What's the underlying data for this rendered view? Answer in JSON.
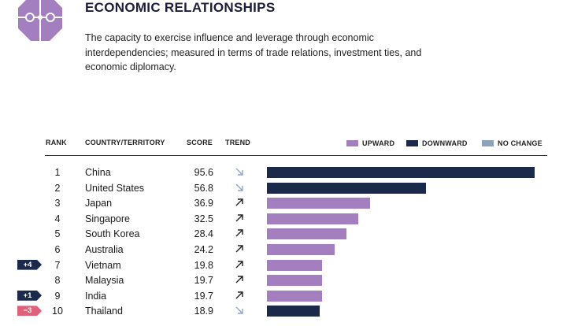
{
  "header": {
    "title": "ECONOMIC RELATIONSHIPS",
    "description": "The capacity to exercise influence and leverage through economic interdependencies; measured in terms of trade relations, investment ties, and economic diplomacy."
  },
  "table": {
    "columns": {
      "rank": "RANK",
      "country": "COUNTRY/TERRITORY",
      "score": "SCORE",
      "trend": "TREND"
    },
    "legend": [
      {
        "label": "UPWARD",
        "color": "#a47fc0"
      },
      {
        "label": "DOWNWARD",
        "color": "#1b2a4a"
      },
      {
        "label": "NO CHANGE",
        "color": "#8aa3b8"
      }
    ]
  },
  "colors": {
    "upward": "#a47fc0",
    "downward": "#1b2a4a",
    "no_change": "#8aa3b8",
    "badge_positive": "#1b2a4a",
    "badge_negative": "#e0627a",
    "trend_down_arrow": "#8fa6c4",
    "trend_up_arrow": "#222222",
    "logo": "#a47fc0"
  },
  "chart_data": {
    "type": "bar",
    "title": "ECONOMIC RELATIONSHIPS",
    "xlim": [
      0,
      100
    ],
    "categories": [
      "China",
      "United States",
      "Japan",
      "Singapore",
      "South Korea",
      "Australia",
      "Vietnam",
      "Malaysia",
      "India",
      "Thailand"
    ],
    "rows": [
      {
        "rank": "1",
        "country": "China",
        "score": "95.6",
        "value": 95.6,
        "trend": "down",
        "change": ""
      },
      {
        "rank": "2",
        "country": "United States",
        "score": "56.8",
        "value": 56.8,
        "trend": "down",
        "change": ""
      },
      {
        "rank": "3",
        "country": "Japan",
        "score": "36.9",
        "value": 36.9,
        "trend": "up",
        "change": ""
      },
      {
        "rank": "4",
        "country": "Singapore",
        "score": "32.5",
        "value": 32.5,
        "trend": "up",
        "change": ""
      },
      {
        "rank": "5",
        "country": "South Korea",
        "score": "28.4",
        "value": 28.4,
        "trend": "up",
        "change": ""
      },
      {
        "rank": "6",
        "country": "Australia",
        "score": "24.2",
        "value": 24.2,
        "trend": "up",
        "change": ""
      },
      {
        "rank": "7",
        "country": "Vietnam",
        "score": "19.8",
        "value": 19.8,
        "trend": "up",
        "change": "+4"
      },
      {
        "rank": "8",
        "country": "Malaysia",
        "score": "19.7",
        "value": 19.7,
        "trend": "up",
        "change": ""
      },
      {
        "rank": "9",
        "country": "India",
        "score": "19.7",
        "value": 19.7,
        "trend": "up",
        "change": "+1"
      },
      {
        "rank": "10",
        "country": "Thailand",
        "score": "18.9",
        "value": 18.9,
        "trend": "down",
        "change": "−3"
      }
    ]
  }
}
